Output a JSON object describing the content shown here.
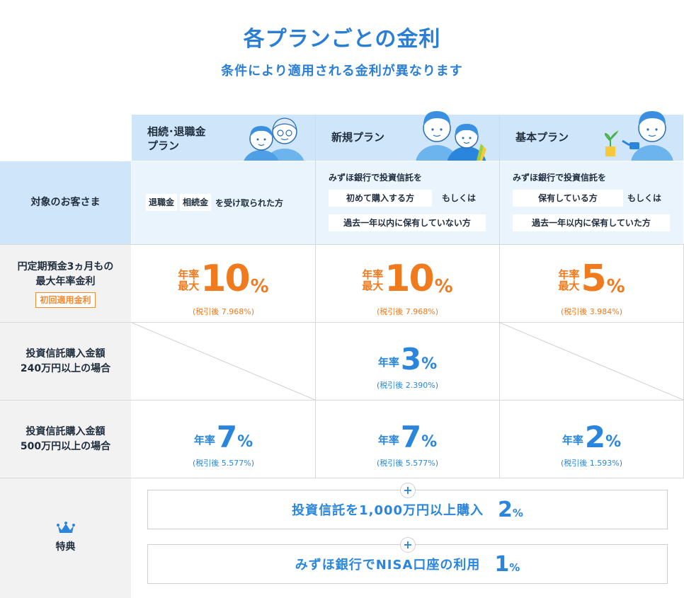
{
  "header": {
    "title": "各プランごとの金利",
    "subtitle": "条件により適用される金利が異なります"
  },
  "plans": [
    {
      "name_line1": "相続･退職金",
      "name_line2": "プラン"
    },
    {
      "name_line1": "新規プラン",
      "name_line2": ""
    },
    {
      "name_line1": "基本プラン",
      "name_line2": ""
    }
  ],
  "target": {
    "label": "対象のお客さま",
    "plan1": {
      "tag1": "退職金",
      "tag2": "相続金",
      "suffix": "を受け取られた方"
    },
    "plan2": {
      "intro": "みずほ銀行で投資信託を",
      "box1": "初めて購入する方",
      "or": "もしくは",
      "box2": "過去一年以内に保有していない方"
    },
    "plan3": {
      "intro": "みずほ銀行で投資信託を",
      "box1": "保有している方",
      "or": "もしくは",
      "box2": "過去一年以内に保有していた方"
    }
  },
  "row_deposit": {
    "label_line1": "円定期預金3ヵ月もの",
    "label_line2": "最大年率金利",
    "badge": "初回適用金利",
    "plan1": {
      "pre1": "年率",
      "pre2": "最大",
      "value": "10",
      "unit": "%",
      "note": "(税引後 7.968%)"
    },
    "plan2": {
      "pre1": "年率",
      "pre2": "最大",
      "value": "10",
      "unit": "%",
      "note": "(税引後 7.968%)"
    },
    "plan3": {
      "pre1": "年率",
      "pre2": "最大",
      "value": "5",
      "unit": "%",
      "note": "(税引後 3.984%)"
    }
  },
  "row_240": {
    "label_line1": "投資信託購入金額",
    "label_line2": "240万円以上の場合",
    "plan2": {
      "pre": "年率",
      "value": "3",
      "unit": "%",
      "note": "(税引後 2.390%)"
    }
  },
  "row_500": {
    "label_line1": "投資信託購入金額",
    "label_line2": "500万円以上の場合",
    "plan1": {
      "pre": "年率",
      "value": "7",
      "unit": "%",
      "note": "(税引後 5.577%)"
    },
    "plan2": {
      "pre": "年率",
      "value": "7",
      "unit": "%",
      "note": "(税引後 5.577%)"
    },
    "plan3": {
      "pre": "年率",
      "value": "2",
      "unit": "%",
      "note": "(税引後 1.593%)"
    }
  },
  "benefits": {
    "label": "特典",
    "plus": "+",
    "items": [
      {
        "text": "投資信託を1,000万円以上購入",
        "value": "2",
        "unit": "%"
      },
      {
        "text": "みずほ銀行でNISA口座の利用",
        "value": "1",
        "unit": "%"
      }
    ]
  },
  "colors": {
    "accent_blue": "#2a86dd",
    "accent_orange": "#f07a1e",
    "header_bg": "#cfe6fa"
  }
}
